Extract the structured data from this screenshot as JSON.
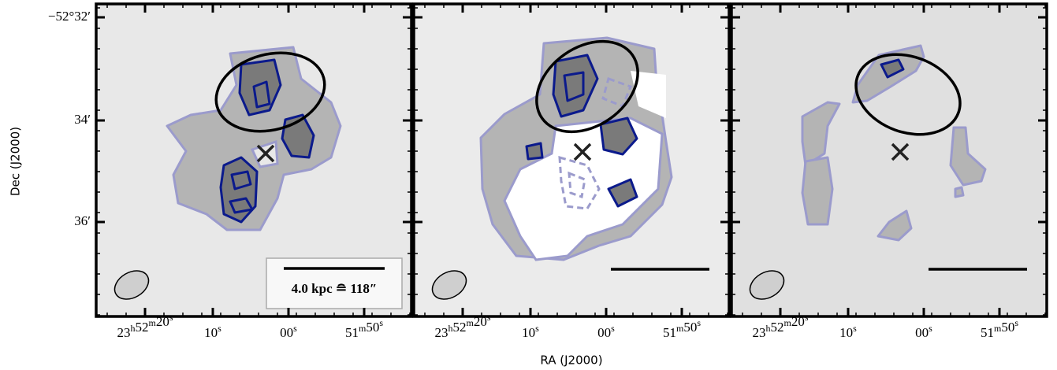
{
  "figure": {
    "ylabel": "Dec (J2000)",
    "xlabel": "RA (J2000)",
    "yticks": [
      "−52°32′",
      "34′",
      "36′"
    ],
    "xticks": [
      [
        {
          "n": "23",
          "u": "h"
        },
        {
          "n": "52",
          "u": "m"
        },
        {
          "n": "20",
          "u": "s"
        }
      ],
      [
        {
          "n": "10",
          "u": "s"
        }
      ],
      [
        {
          "n": "00",
          "u": "s"
        }
      ],
      [
        {
          "n": "51",
          "u": "m"
        },
        {
          "n": "50",
          "u": "s"
        }
      ]
    ],
    "scalebar": "4.0 kpc ≘ 118″"
  }
}
